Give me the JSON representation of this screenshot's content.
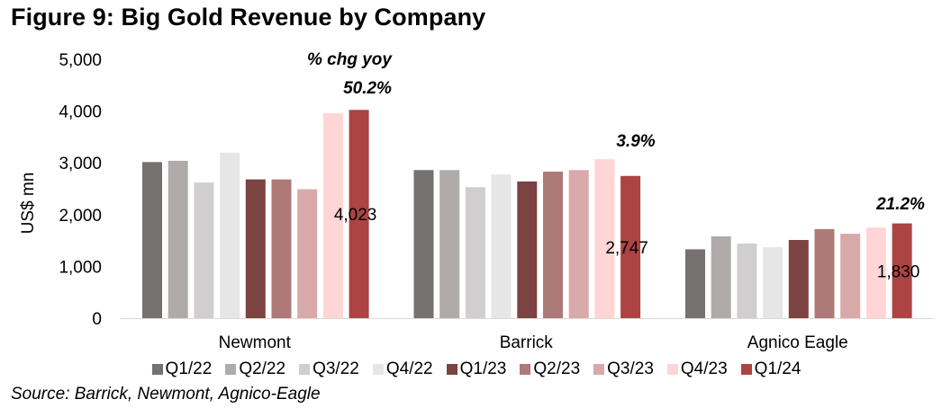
{
  "title": "Figure 9: Big Gold Revenue by Company",
  "source": "Source: Barrick, Newmont, Agnico-Eagle",
  "chart_data": {
    "type": "bar",
    "title": "Figure 9: Big Gold Revenue by Company",
    "xlabel": "",
    "ylabel": "US$ mn",
    "ylim": [
      0,
      5000
    ],
    "yticks": [
      0,
      1000,
      2000,
      3000,
      4000,
      5000
    ],
    "ytick_labels": [
      "0",
      "1,000",
      "2,000",
      "3,000",
      "4,000",
      "5,000"
    ],
    "grid": false,
    "legend_position": "bottom",
    "categories": [
      "Newmont",
      "Barrick",
      "Agnico Eagle"
    ],
    "series": [
      {
        "name": "Q1/22",
        "color": "#767171",
        "values": [
          3015,
          2860,
          1330
        ]
      },
      {
        "name": "Q2/22",
        "color": "#AFABAB",
        "values": [
          3040,
          2860,
          1580
        ]
      },
      {
        "name": "Q3/22",
        "color": "#D0CECE",
        "values": [
          2620,
          2530,
          1440
        ]
      },
      {
        "name": "Q4/22",
        "color": "#E7E6E6",
        "values": [
          3195,
          2775,
          1370
        ]
      },
      {
        "name": "Q1/23",
        "color": "#7B4341",
        "values": [
          2680,
          2640,
          1510
        ]
      },
      {
        "name": "Q2/23",
        "color": "#AD7A78",
        "values": [
          2680,
          2830,
          1720
        ]
      },
      {
        "name": "Q3/23",
        "color": "#D8A9A9",
        "values": [
          2490,
          2860,
          1630
        ]
      },
      {
        "name": "Q4/23",
        "color": "#FFD5D5",
        "values": [
          3960,
          3070,
          1750
        ]
      },
      {
        "name": "Q1/24",
        "color": "#AB4442",
        "values": [
          4023,
          2747,
          1830
        ]
      }
    ],
    "data_labels": [
      {
        "category": "Newmont",
        "series": "Q1/24",
        "text": "4,023"
      },
      {
        "category": "Barrick",
        "series": "Q1/24",
        "text": "2,747"
      },
      {
        "category": "Agnico Eagle",
        "series": "Q1/24",
        "text": "1,830"
      }
    ],
    "annotations": [
      {
        "category": "Newmont",
        "text": "% chg yoy"
      },
      {
        "category": "Newmont",
        "text": "50.2%"
      },
      {
        "category": "Barrick",
        "text": "3.9%"
      },
      {
        "category": "Agnico Eagle",
        "text": "21.2%"
      }
    ]
  }
}
